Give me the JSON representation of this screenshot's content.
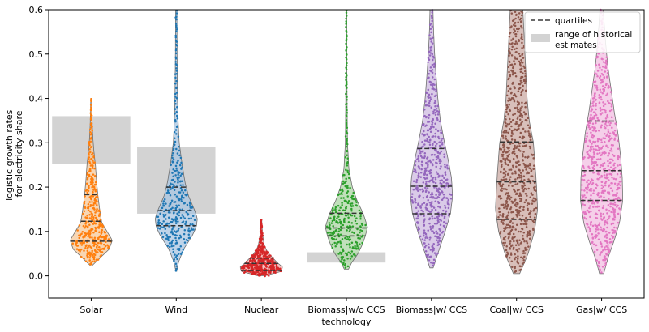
{
  "chart_data": {
    "type": "violin",
    "xlabel": "technology",
    "ylabel_lines": [
      "logistic growth rates",
      "for electricity share"
    ],
    "ylim": [
      -0.05,
      0.6
    ],
    "yticks": [
      0.0,
      0.1,
      0.2,
      0.3,
      0.4,
      0.5,
      0.6
    ],
    "ytick_labels": [
      "0.0",
      "0.1",
      "0.2",
      "0.3",
      "0.4",
      "0.5",
      "0.6"
    ],
    "grid": false,
    "legend_position": "top-right",
    "legend": {
      "quartiles_label": "quartiles",
      "historical_label_lines": [
        "range of historical",
        "estimates"
      ]
    },
    "categories": [
      "Solar",
      "Wind",
      "Nuclear",
      "Biomass|w/o CCS",
      "Biomass|w/ CCS",
      "Coal|w/ CCS",
      "Gas|w/ CCS"
    ],
    "series": [
      {
        "category": "Solar",
        "color": "#ff7f0e",
        "fill": "#f5c89a",
        "min": 0.022,
        "max": 0.4,
        "q1": 0.078,
        "median": 0.123,
        "q3": 0.183,
        "historical_range": [
          0.253,
          0.36
        ],
        "profile": [
          [
            0.022,
            0.02
          ],
          [
            0.035,
            0.3
          ],
          [
            0.06,
            0.85
          ],
          [
            0.08,
            1.0
          ],
          [
            0.1,
            0.75
          ],
          [
            0.12,
            0.5
          ],
          [
            0.15,
            0.4
          ],
          [
            0.18,
            0.32
          ],
          [
            0.21,
            0.26
          ],
          [
            0.25,
            0.2
          ],
          [
            0.28,
            0.13
          ],
          [
            0.31,
            0.08
          ],
          [
            0.34,
            0.05
          ],
          [
            0.37,
            0.03
          ],
          [
            0.4,
            0.02
          ]
        ]
      },
      {
        "category": "Wind",
        "color": "#1f77b4",
        "fill": "#a9c6e2",
        "min": 0.01,
        "max": 0.6,
        "q1": 0.113,
        "median": 0.147,
        "q3": 0.2,
        "historical_range": [
          0.14,
          0.291
        ],
        "profile": [
          [
            0.01,
            0.02
          ],
          [
            0.03,
            0.1
          ],
          [
            0.06,
            0.35
          ],
          [
            0.09,
            0.75
          ],
          [
            0.11,
            0.95
          ],
          [
            0.13,
            1.0
          ],
          [
            0.15,
            0.85
          ],
          [
            0.18,
            0.58
          ],
          [
            0.21,
            0.42
          ],
          [
            0.25,
            0.28
          ],
          [
            0.3,
            0.14
          ],
          [
            0.35,
            0.09
          ],
          [
            0.4,
            0.06
          ],
          [
            0.5,
            0.04
          ],
          [
            0.6,
            0.03
          ]
        ]
      },
      {
        "category": "Nuclear",
        "color": "#d62728",
        "fill": "#f0b2b0",
        "min": 0.0,
        "max": 0.125,
        "q1": 0.012,
        "median": 0.028,
        "q3": 0.04,
        "historical_range": null,
        "profile": [
          [
            0.0,
            0.15
          ],
          [
            0.01,
            0.95
          ],
          [
            0.02,
            1.0
          ],
          [
            0.03,
            0.75
          ],
          [
            0.04,
            0.55
          ],
          [
            0.05,
            0.36
          ],
          [
            0.06,
            0.22
          ],
          [
            0.07,
            0.14
          ],
          [
            0.08,
            0.1
          ],
          [
            0.09,
            0.07
          ],
          [
            0.1,
            0.05
          ],
          [
            0.125,
            0.02
          ]
        ]
      },
      {
        "category": "Biomass|w/o CCS",
        "color": "#2ca02c",
        "fill": "#acd5a4",
        "min": 0.015,
        "max": 0.6,
        "q1": 0.09,
        "median": 0.108,
        "q3": 0.141,
        "historical_range": [
          0.03,
          0.053
        ],
        "profile": [
          [
            0.015,
            0.1
          ],
          [
            0.03,
            0.25
          ],
          [
            0.05,
            0.55
          ],
          [
            0.07,
            0.75
          ],
          [
            0.09,
            0.9
          ],
          [
            0.11,
            1.0
          ],
          [
            0.14,
            0.8
          ],
          [
            0.17,
            0.5
          ],
          [
            0.2,
            0.28
          ],
          [
            0.24,
            0.12
          ],
          [
            0.3,
            0.05
          ],
          [
            0.4,
            0.03
          ],
          [
            0.5,
            0.02
          ],
          [
            0.6,
            0.02
          ]
        ]
      },
      {
        "category": "Biomass|w/ CCS",
        "color": "#9467bd",
        "fill": "#cdb9e0",
        "min": 0.018,
        "max": 0.6,
        "q1": 0.14,
        "median": 0.202,
        "q3": 0.287,
        "historical_range": null,
        "profile": [
          [
            0.018,
            0.08
          ],
          [
            0.05,
            0.3
          ],
          [
            0.1,
            0.65
          ],
          [
            0.14,
            0.9
          ],
          [
            0.18,
            1.0
          ],
          [
            0.22,
            0.95
          ],
          [
            0.26,
            0.8
          ],
          [
            0.3,
            0.62
          ],
          [
            0.35,
            0.42
          ],
          [
            0.4,
            0.3
          ],
          [
            0.45,
            0.22
          ],
          [
            0.5,
            0.15
          ],
          [
            0.55,
            0.1
          ],
          [
            0.6,
            0.07
          ]
        ]
      },
      {
        "category": "Coal|w/ CCS",
        "color": "#8c564b",
        "fill": "#cbaaa3",
        "min": 0.005,
        "max": 0.6,
        "q1": 0.127,
        "median": 0.212,
        "q3": 0.302,
        "historical_range": null,
        "profile": [
          [
            0.005,
            0.15
          ],
          [
            0.05,
            0.55
          ],
          [
            0.1,
            0.85
          ],
          [
            0.15,
            1.0
          ],
          [
            0.2,
            0.95
          ],
          [
            0.25,
            0.88
          ],
          [
            0.3,
            0.8
          ],
          [
            0.35,
            0.6
          ],
          [
            0.4,
            0.5
          ],
          [
            0.45,
            0.45
          ],
          [
            0.5,
            0.4
          ],
          [
            0.55,
            0.35
          ],
          [
            0.6,
            0.3
          ]
        ]
      },
      {
        "category": "Gas|w/ CCS",
        "color": "#e377c2",
        "fill": "#f1bfe2",
        "min": 0.005,
        "max": 0.6,
        "q1": 0.17,
        "median": 0.237,
        "q3": 0.349,
        "historical_range": null,
        "profile": [
          [
            0.005,
            0.1
          ],
          [
            0.04,
            0.3
          ],
          [
            0.08,
            0.6
          ],
          [
            0.12,
            0.85
          ],
          [
            0.17,
            1.0
          ],
          [
            0.22,
            0.98
          ],
          [
            0.27,
            0.9
          ],
          [
            0.32,
            0.78
          ],
          [
            0.37,
            0.6
          ],
          [
            0.42,
            0.45
          ],
          [
            0.47,
            0.3
          ],
          [
            0.52,
            0.2
          ],
          [
            0.57,
            0.12
          ],
          [
            0.6,
            0.08
          ]
        ]
      }
    ]
  }
}
